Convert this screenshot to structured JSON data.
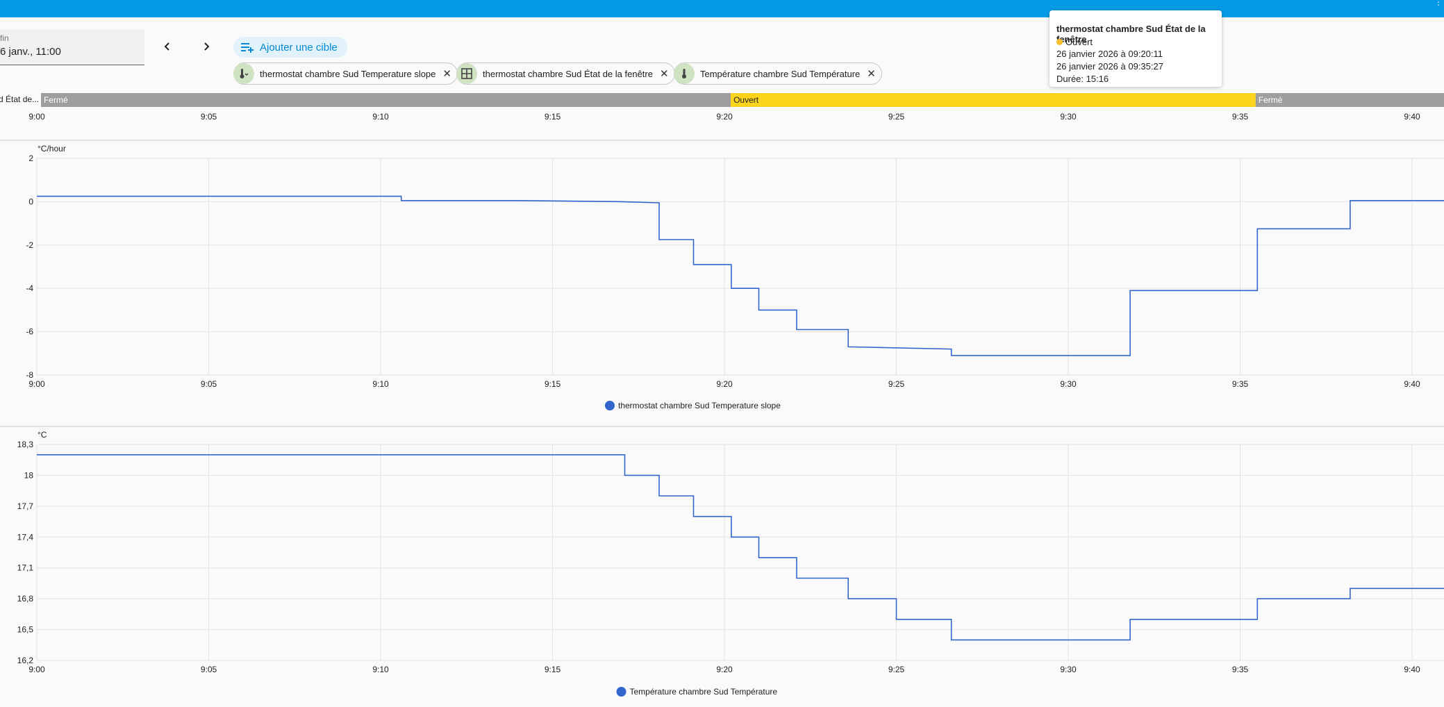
{
  "header": {
    "date_label": "fin",
    "date_value": "6 janv., 11:00",
    "add_target_label": "Ajouter une cible"
  },
  "chips": [
    {
      "label": "thermostat chambre Sud Temperature slope",
      "icon": "thermometer-trend-icon"
    },
    {
      "label": "thermostat chambre Sud État de la fenêtre",
      "icon": "window-icon"
    },
    {
      "label": "Température chambre Sud Température",
      "icon": "thermometer-icon"
    }
  ],
  "tooltip": {
    "title": "thermostat chambre Sud État de la fenêtre",
    "state": "Ouvert",
    "start": "26 janvier 2026 à 09:20:11",
    "end": "26 janvier 2026 à 09:35:27",
    "duration": "Durée: 15:16",
    "state_color": "#fbc02d"
  },
  "colors": {
    "header": "#039be5",
    "line": "#3366cc",
    "closed": "#9e9e9e",
    "open": "#fdd41c",
    "accent": "#0288d1"
  },
  "chart_data": [
    {
      "type": "timeline",
      "entity_label": "d État de...",
      "segments": [
        {
          "state": "Fermé",
          "start": "9:00",
          "end": "9:20:11"
        },
        {
          "state": "Ouvert",
          "start": "9:20:11",
          "end": "9:35:27"
        },
        {
          "state": "Fermé",
          "start": "9:35:27",
          "end": "9:41"
        }
      ],
      "x_ticks": [
        "9:00",
        "9:05",
        "9:10",
        "9:15",
        "9:20",
        "9:25",
        "9:30",
        "9:35",
        "9:40"
      ]
    },
    {
      "type": "line",
      "step": true,
      "unit": "°C/hour",
      "ylim": [
        -8,
        2
      ],
      "y_ticks": [
        "2",
        "0",
        "-2",
        "-4",
        "-6",
        "-8"
      ],
      "x_ticks": [
        "9:00",
        "9:05",
        "9:10",
        "9:15",
        "9:20",
        "9:25",
        "9:30",
        "9:35",
        "9:40"
      ],
      "series": [
        {
          "name": "thermostat chambre Sud Temperature slope",
          "points": [
            [
              0,
              0.25
            ],
            [
              10.6,
              0.25
            ],
            [
              10.6,
              0.05
            ],
            [
              14,
              0.05
            ],
            [
              17,
              0.0
            ],
            [
              18.1,
              -0.05
            ],
            [
              18.1,
              -1.75
            ],
            [
              19.1,
              -1.75
            ],
            [
              19.1,
              -2.9
            ],
            [
              20.2,
              -2.9
            ],
            [
              20.2,
              -4.0
            ],
            [
              21,
              -4.0
            ],
            [
              21,
              -5.0
            ],
            [
              22.1,
              -5.0
            ],
            [
              22.1,
              -5.9
            ],
            [
              23.6,
              -5.9
            ],
            [
              23.6,
              -6.7
            ],
            [
              26.6,
              -6.8
            ],
            [
              26.6,
              -7.1
            ],
            [
              31.8,
              -7.1
            ],
            [
              31.8,
              -4.1
            ],
            [
              35.5,
              -4.1
            ],
            [
              35.5,
              -1.25
            ],
            [
              38.2,
              -1.25
            ],
            [
              38.2,
              0.05
            ],
            [
              41,
              0.05
            ]
          ]
        }
      ]
    },
    {
      "type": "line",
      "step": true,
      "unit": "°C",
      "ylim": [
        16.2,
        18.3
      ],
      "y_ticks": [
        "18,3",
        "18",
        "17,7",
        "17,4",
        "17,1",
        "16,8",
        "16,5",
        "16,2"
      ],
      "x_ticks": [
        "9:00",
        "9:05",
        "9:10",
        "9:15",
        "9:20",
        "9:25",
        "9:30",
        "9:35",
        "9:40"
      ],
      "series": [
        {
          "name": "Température chambre Sud Température",
          "points": [
            [
              0,
              18.2
            ],
            [
              17.1,
              18.2
            ],
            [
              17.1,
              18.0
            ],
            [
              18.1,
              18.0
            ],
            [
              18.1,
              17.8
            ],
            [
              19.1,
              17.8
            ],
            [
              19.1,
              17.6
            ],
            [
              20.2,
              17.6
            ],
            [
              20.2,
              17.4
            ],
            [
              21,
              17.4
            ],
            [
              21,
              17.2
            ],
            [
              22.1,
              17.2
            ],
            [
              22.1,
              17.0
            ],
            [
              23.6,
              17.0
            ],
            [
              23.6,
              16.8
            ],
            [
              25,
              16.8
            ],
            [
              25,
              16.6
            ],
            [
              26.6,
              16.6
            ],
            [
              26.6,
              16.4
            ],
            [
              31.8,
              16.4
            ],
            [
              31.8,
              16.6
            ],
            [
              35.5,
              16.6
            ],
            [
              35.5,
              16.8
            ],
            [
              38.2,
              16.8
            ],
            [
              38.2,
              16.9
            ],
            [
              41,
              16.9
            ]
          ]
        }
      ]
    }
  ]
}
